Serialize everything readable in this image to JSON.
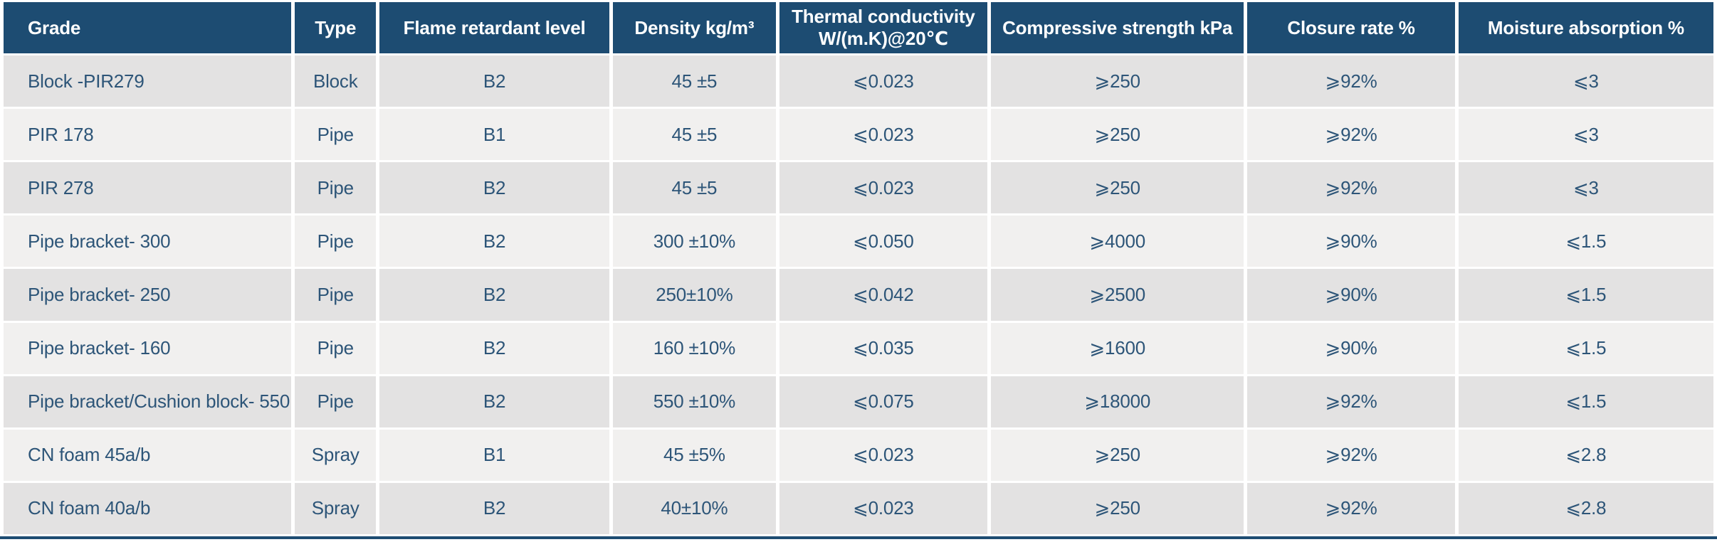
{
  "table": {
    "title": "product-specifications",
    "columns": [
      {
        "id": "grade",
        "label": "Grade"
      },
      {
        "id": "type",
        "label": "Type"
      },
      {
        "id": "flame_retardant_level",
        "label": "Flame retardant level"
      },
      {
        "id": "density",
        "label": "Density kg/m³"
      },
      {
        "id": "thermal_conductivity",
        "label": "Thermal conductivity W/(m.K)@20℃"
      },
      {
        "id": "compressive_strength",
        "label": "Compressive strength kPa"
      },
      {
        "id": "closure_rate",
        "label": "Closure rate %"
      },
      {
        "id": "moisture_absorption",
        "label": "Moisture absorption %"
      }
    ],
    "rows": [
      [
        "Block -PIR279",
        "Block",
        "B2",
        "45 ±5",
        "⩽0.023",
        "⩾250",
        "⩾92%",
        "⩽3"
      ],
      [
        "PIR 178",
        "Pipe",
        "B1",
        "45 ±5",
        "⩽0.023",
        "⩾250",
        "⩾92%",
        "⩽3"
      ],
      [
        "PIR 278",
        "Pipe",
        "B2",
        "45 ±5",
        "⩽0.023",
        "⩾250",
        "⩾92%",
        "⩽3"
      ],
      [
        "Pipe bracket- 300",
        "Pipe",
        "B2",
        "300 ±10%",
        "⩽0.050",
        "⩾4000",
        "⩾90%",
        "⩽1.5"
      ],
      [
        "Pipe bracket- 250",
        "Pipe",
        "B2",
        "250±10%",
        "⩽0.042",
        "⩾2500",
        "⩾90%",
        "⩽1.5"
      ],
      [
        "Pipe bracket- 160",
        "Pipe",
        "B2",
        "160 ±10%",
        "⩽0.035",
        "⩾1600",
        "⩾90%",
        "⩽1.5"
      ],
      [
        "Pipe bracket/Cushion block- 550",
        "Pipe",
        "B2",
        "550 ±10%",
        "⩽0.075",
        "⩾18000",
        "⩾92%",
        "⩽1.5"
      ],
      [
        "CN foam 45a/b",
        "Spray",
        "B1",
        "45 ±5%",
        "⩽0.023",
        "⩾250",
        "⩾92%",
        "⩽2.8"
      ],
      [
        "CN foam 40a/b",
        "Spray",
        "B2",
        "40±10%",
        "⩽0.023",
        "⩾250",
        "⩾92%",
        "⩽2.8"
      ]
    ],
    "colors": {
      "header_bg": "#1d4c72",
      "header_text": "#ffffff",
      "row_odd_bg": "#e3e2e2",
      "row_even_bg": "#f1f0ef",
      "cell_text": "#2d5578",
      "grid_line": "#ffffff",
      "bottom_border": "#1d4c72"
    }
  }
}
